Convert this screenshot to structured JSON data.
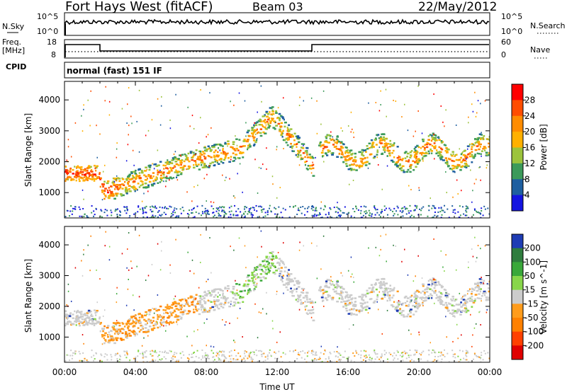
{
  "header": {
    "title": "Fort Hays West (fitACF)",
    "beam": "Beam 03",
    "date": "22/May/2012"
  },
  "panels": {
    "nsky_label": "N.Sky",
    "nsky_ticks": [
      "10^5",
      "10^0"
    ],
    "nsearch_label": "N.Search",
    "nsearch_ticks": [
      "10^5",
      "10^0"
    ],
    "freq_label": "Freq.",
    "freq_unit": "[MHz]",
    "freq_ticks": [
      "18",
      "8"
    ],
    "nave_label": "Nave",
    "nave_ticks": [
      "60",
      "0"
    ],
    "cpid_label": "CPID",
    "cpid_text": "normal (fast) 151 IF"
  },
  "chart_data": [
    {
      "type": "heatmap",
      "name": "power",
      "xlabel": "",
      "ylabel": "Slant Range [km]",
      "ylim": [
        180,
        4600
      ],
      "yticks": [
        "1000",
        "2000",
        "3000",
        "4000"
      ],
      "xlim_hours": [
        0,
        24
      ],
      "colorbar_label": "Power [dB]",
      "colorbar_ticks": [
        "28",
        "24",
        "20",
        "16",
        "12",
        "8",
        "4"
      ],
      "colorbar_colors": [
        "#ff0000",
        "#ff4d00",
        "#ff8c00",
        "#ffb000",
        "#9cc33c",
        "#3c9a5a",
        "#1e5fa0",
        "#1414e0"
      ]
    },
    {
      "type": "heatmap",
      "name": "velocity",
      "xlabel": "Time UT",
      "ylabel": "Slant Range [km]",
      "ylim": [
        180,
        4600
      ],
      "yticks": [
        "1000",
        "2000",
        "3000",
        "4000"
      ],
      "xticks": [
        "00:00",
        "04:00",
        "08:00",
        "12:00",
        "16:00",
        "20:00",
        "00:00"
      ],
      "colorbar_label": "Velocity [m s^-1]",
      "colorbar_ticks": [
        "200",
        "100",
        "50",
        "15",
        "-15",
        "-50",
        "-100",
        "-200"
      ],
      "colorbar_colors": [
        "#1e3cb4",
        "#2f7d3e",
        "#3aa83a",
        "#88d64a",
        "#cccccc",
        "#ff9c1c",
        "#ff8000",
        "#ff4000",
        "#e00000"
      ]
    }
  ]
}
